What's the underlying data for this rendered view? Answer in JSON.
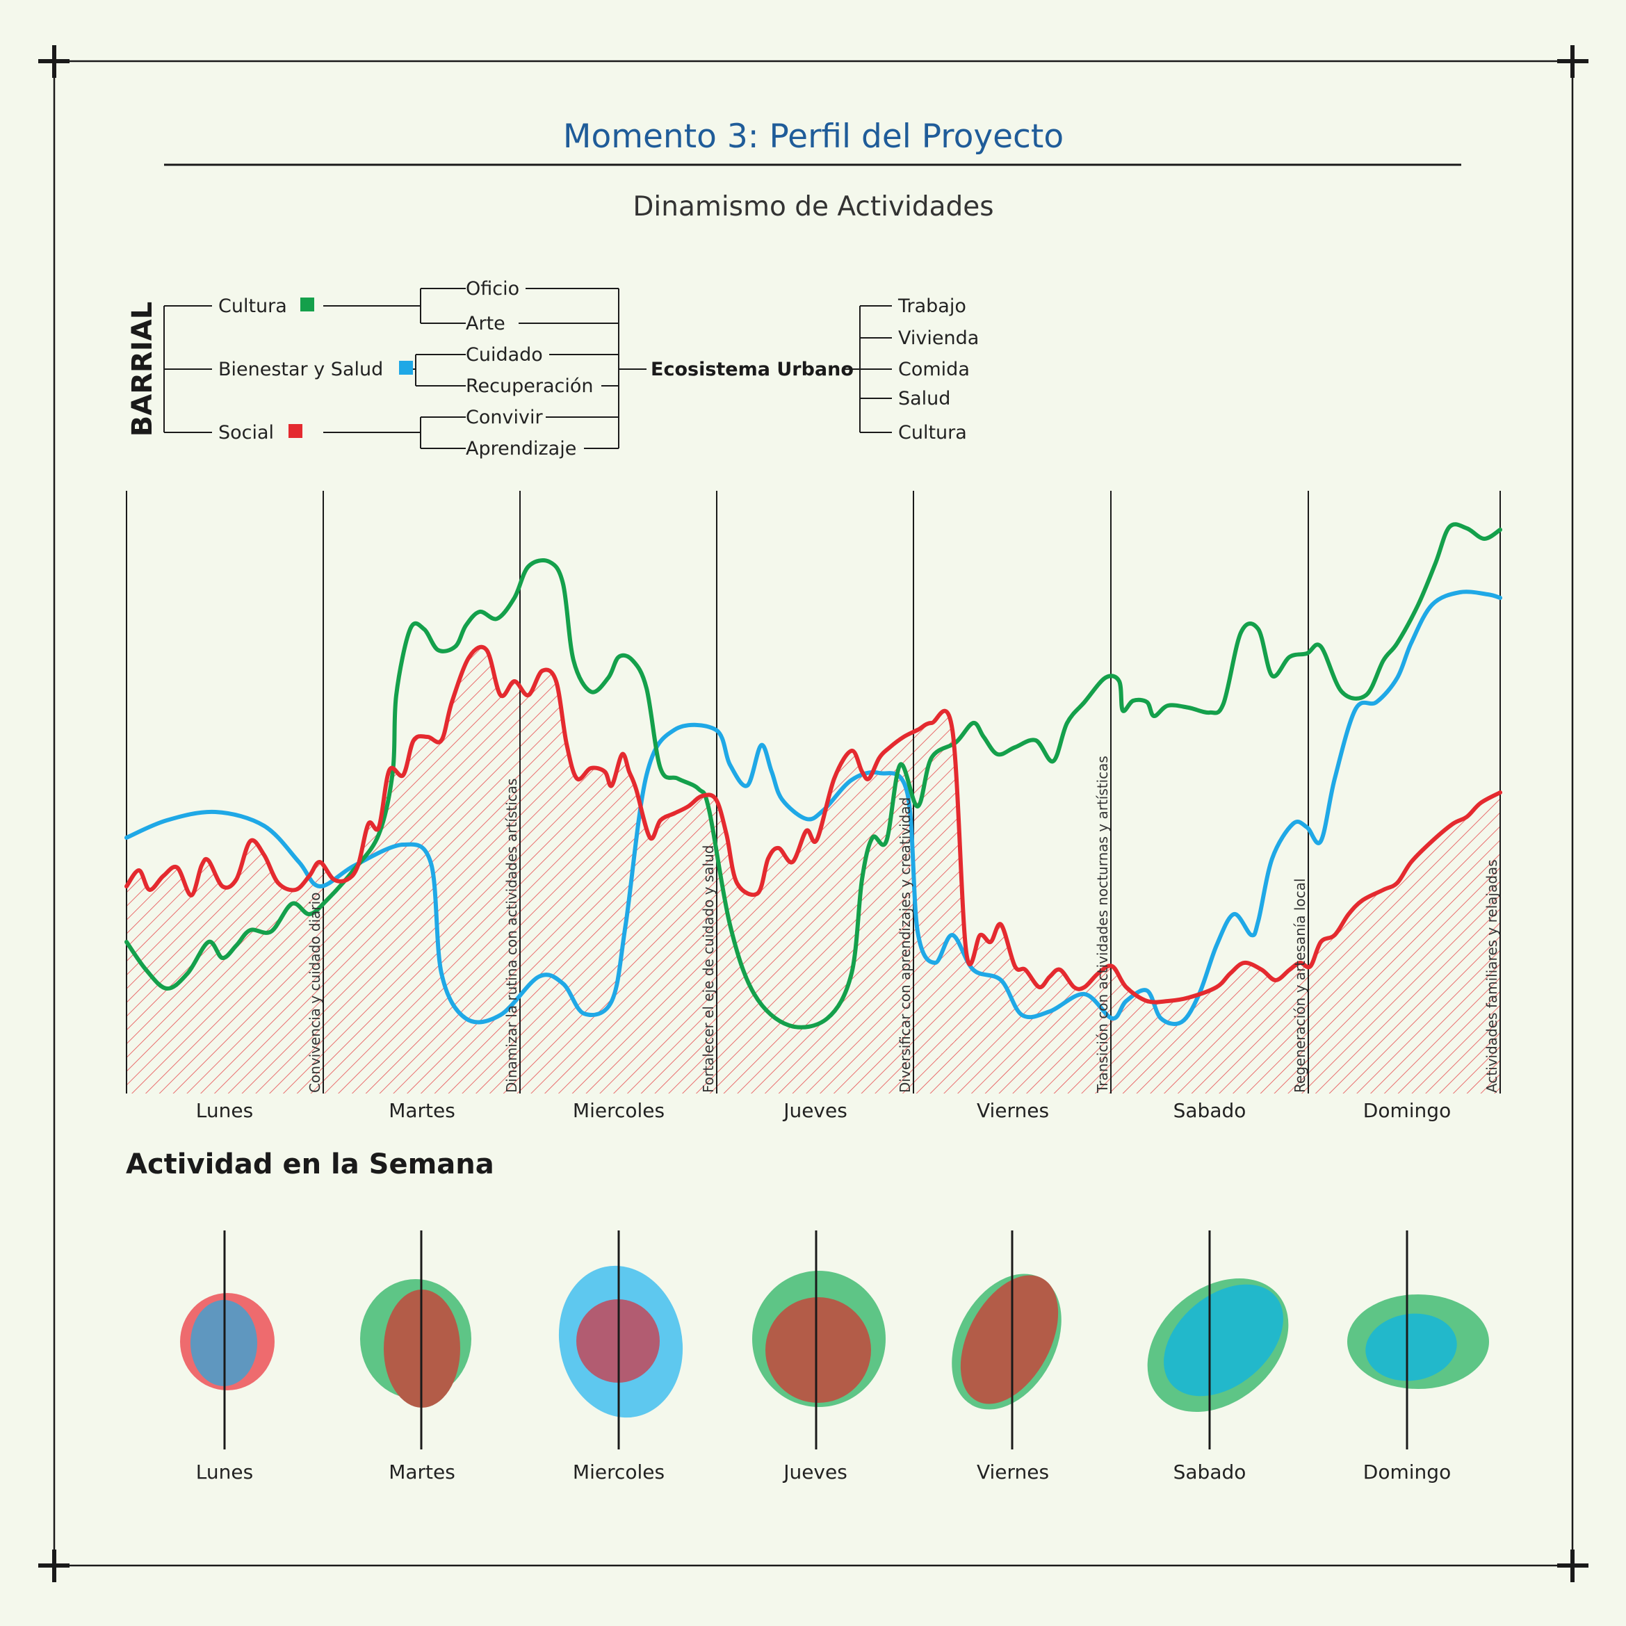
{
  "title": "Momento 3: Perfil del Proyecto",
  "subtitle": "Dinamismo de Actividades",
  "colors": {
    "background": "#f4f8ec",
    "title": "#1f5c99",
    "cultura": "#14a04b",
    "bienestar": "#1fa8e6",
    "social": "#e42a2f",
    "line": "#1a1a1a"
  },
  "tree": {
    "root": "BARRIAL",
    "groups": [
      {
        "label": "Cultura",
        "color": "#14a04b",
        "children": [
          "Oficio",
          "Arte"
        ]
      },
      {
        "label": "Bienestar y Salud",
        "color": "#1fa8e6",
        "children": [
          "Cuidado",
          "Recuperación"
        ]
      },
      {
        "label": "Social",
        "color": "#e42a2f",
        "children": [
          "Convivir",
          "Aprendizaje"
        ]
      }
    ],
    "hub": "Ecosistema Urbano",
    "outputs": [
      "Trabajo",
      "Vivienda",
      "Comida",
      "Salud",
      "Cultura"
    ]
  },
  "days": [
    "Lunes",
    "Martes",
    "Miercoles",
    "Jueves",
    "Viernes",
    "Sabado",
    "Domingo"
  ],
  "day_notes": [
    "Convivencia y cuidado diario",
    "Dinamizar la rutina con actividades artísticas",
    "Fortalecer el eje de cuidado y salud",
    "Diversificar con aprendizajes y creatividad",
    "Transición con actividades nocturnas y artísticas",
    "Regeneración y artesanía local",
    "Actividades familiares y relajadas"
  ],
  "section_title": "Actividad en la Semana",
  "chart_data": {
    "type": "line",
    "x": [
      "Lunes",
      "Martes",
      "Miercoles",
      "Jueves",
      "Viernes",
      "Sabado",
      "Domingo"
    ],
    "series": [
      {
        "name": "Cultura",
        "color": "#14a04b",
        "values": [
          0.25,
          0.4,
          0.86,
          0.15,
          0.6,
          0.7,
          0.93
        ]
      },
      {
        "name": "Bienestar y Salud",
        "color": "#1fa8e6",
        "values": [
          0.45,
          0.35,
          0.15,
          0.6,
          0.2,
          0.15,
          0.82
        ]
      },
      {
        "name": "Social",
        "color": "#e42a2f",
        "values": [
          0.35,
          0.42,
          0.72,
          0.45,
          0.65,
          0.15,
          0.5
        ]
      }
    ]
  }
}
